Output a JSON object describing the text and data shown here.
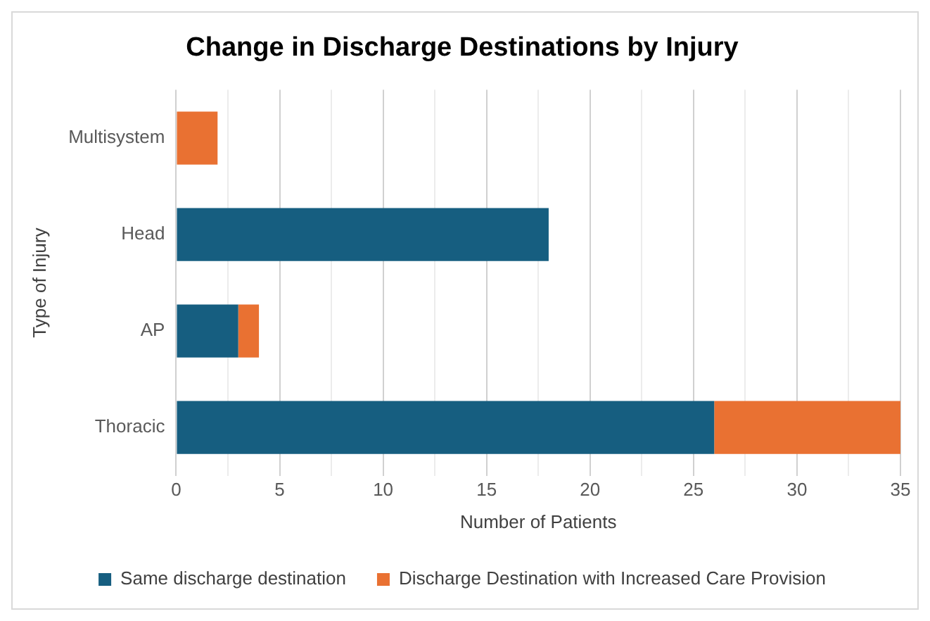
{
  "chart_data": {
    "type": "bar",
    "orientation": "horizontal",
    "stacked": true,
    "title": "Change in Discharge Destinations by Injury",
    "xlabel": "Number of Patients",
    "ylabel": "Type of Injury",
    "categories": [
      "Multisystem",
      "Head",
      "AP",
      "Thoracic"
    ],
    "series": [
      {
        "name": "Same discharge destination",
        "color": "#165e80",
        "values": [
          0,
          18,
          3,
          26
        ]
      },
      {
        "name": "Discharge Destination with Increased Care Provision",
        "color": "#e97132",
        "values": [
          2,
          0,
          1,
          9
        ]
      }
    ],
    "xlim": [
      0,
      35
    ],
    "xticks": [
      0,
      {
        "value": 2.5,
        "label": null
      },
      5,
      {
        "value": 7.5,
        "label": null
      },
      10,
      {
        "value": 12.5,
        "label": null
      },
      15,
      {
        "value": 17.5,
        "label": null
      },
      20,
      {
        "value": 22.5,
        "label": null
      },
      25,
      {
        "value": 27.5,
        "label": null
      },
      30,
      {
        "value": 32.5,
        "label": null
      },
      35
    ],
    "grid": "x",
    "legend": "bottom"
  }
}
